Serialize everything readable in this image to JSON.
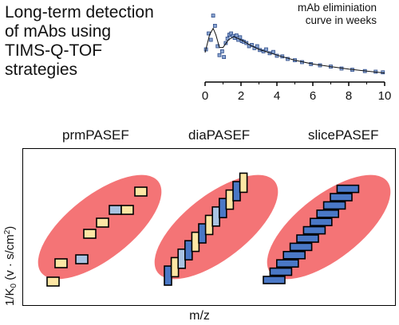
{
  "title_lines": [
    "Long-term detection",
    "of mAbs using",
    "TIMS-Q-TOF",
    "strategies"
  ],
  "inset_plot": {
    "caption_lines": [
      "mAb eliminiation",
      "curve in weeks"
    ],
    "x_ticks": [
      "0",
      "2",
      "4",
      "6",
      "8",
      "10"
    ],
    "x_range": [
      0,
      10
    ],
    "y_range": [
      0,
      1
    ],
    "points": [
      [
        0.05,
        0.45
      ],
      [
        0.2,
        0.7
      ],
      [
        0.32,
        0.6
      ],
      [
        0.45,
        0.98
      ],
      [
        0.55,
        0.82
      ],
      [
        0.7,
        0.5
      ],
      [
        0.8,
        0.36
      ],
      [
        0.95,
        0.42
      ],
      [
        1.05,
        0.33
      ],
      [
        1.15,
        0.55
      ],
      [
        1.25,
        0.62
      ],
      [
        1.35,
        0.68
      ],
      [
        1.45,
        0.7
      ],
      [
        1.55,
        0.66
      ],
      [
        1.65,
        0.63
      ],
      [
        1.75,
        0.67
      ],
      [
        1.85,
        0.6
      ],
      [
        1.95,
        0.64
      ],
      [
        2.05,
        0.58
      ],
      [
        2.15,
        0.57
      ],
      [
        2.3,
        0.55
      ],
      [
        2.45,
        0.5
      ],
      [
        2.6,
        0.52
      ],
      [
        2.75,
        0.47
      ],
      [
        2.9,
        0.5
      ],
      [
        3.05,
        0.44
      ],
      [
        3.25,
        0.42
      ],
      [
        3.4,
        0.45
      ],
      [
        3.6,
        0.39
      ],
      [
        3.8,
        0.41
      ],
      [
        4.0,
        0.35
      ],
      [
        4.3,
        0.34
      ],
      [
        4.6,
        0.3
      ],
      [
        5.0,
        0.28
      ],
      [
        5.4,
        0.25
      ],
      [
        5.9,
        0.22
      ],
      [
        6.4,
        0.2
      ],
      [
        7.0,
        0.18
      ],
      [
        7.6,
        0.15
      ],
      [
        8.2,
        0.13
      ],
      [
        8.9,
        0.11
      ],
      [
        9.5,
        0.1
      ],
      [
        9.9,
        0.09
      ]
    ],
    "curve": [
      [
        0,
        0.4
      ],
      [
        0.25,
        0.68
      ],
      [
        0.45,
        0.78
      ],
      [
        0.6,
        0.68
      ],
      [
        0.8,
        0.48
      ],
      [
        1.0,
        0.48
      ],
      [
        1.3,
        0.6
      ],
      [
        1.6,
        0.65
      ],
      [
        2.0,
        0.6
      ],
      [
        2.5,
        0.52
      ],
      [
        3.0,
        0.45
      ],
      [
        4.0,
        0.36
      ],
      [
        5.0,
        0.28
      ],
      [
        6.0,
        0.22
      ],
      [
        7.0,
        0.18
      ],
      [
        8.0,
        0.14
      ],
      [
        9.0,
        0.11
      ],
      [
        10.0,
        0.08
      ]
    ]
  },
  "methods": [
    {
      "name": "prmPASEF"
    },
    {
      "name": "diaPASEF"
    },
    {
      "name": "slicePASEF"
    }
  ],
  "panel": {
    "ylabel_prefix": "1/K",
    "ylabel_sub": "0",
    "ylabel_unit": " (v · s/cm",
    "ylabel_sup": "2",
    "ylabel_close": ")",
    "xlabel": "m/z"
  },
  "colors": {
    "ellipse": "#f47476",
    "yellow": "#fde6a4",
    "light_blue": "#a9c3e2",
    "blue": "#4a78c6",
    "dot_fill": "#8aa5d1",
    "dot_stroke": "#2f4d8a"
  }
}
